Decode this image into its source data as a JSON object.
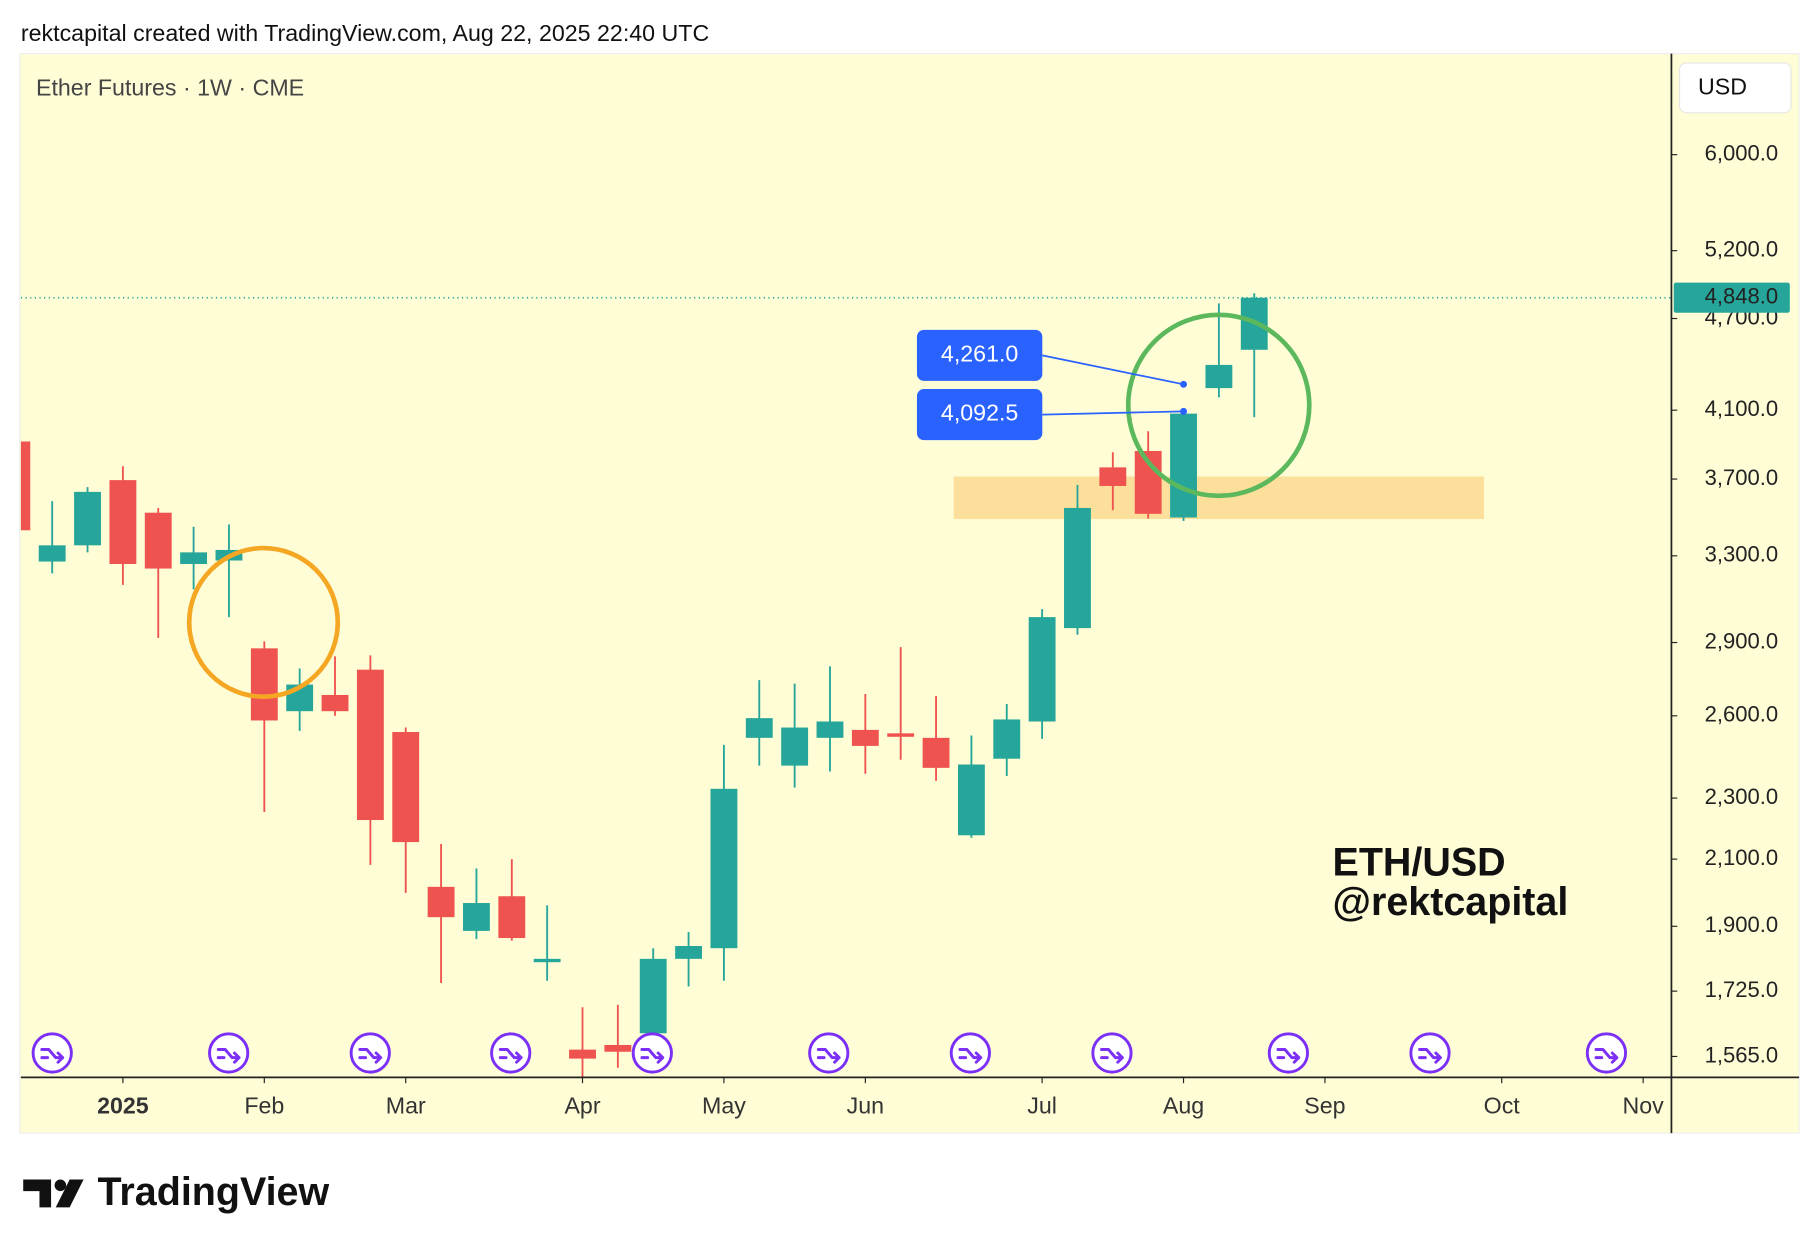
{
  "header": "rektcapital created with TradingView.com, Aug 22, 2025 22:40 UTC",
  "brand": "TradingView",
  "currency": "USD",
  "watermark": [
    "ETH/USD",
    "@rektcapital"
  ],
  "chart_data": {
    "type": "candlestick",
    "title": "Ether Futures · 1W · CME",
    "log_scale": true,
    "up_color": "#26a69a",
    "down_color": "#ef5350",
    "categories": [
      null,
      null,
      null,
      null,
      null,
      null,
      null,
      null,
      null,
      null,
      null,
      null,
      null,
      null,
      null,
      null,
      null,
      null,
      null,
      null,
      null,
      null,
      null,
      null,
      null,
      null,
      null,
      null,
      null,
      null,
      null,
      null,
      null,
      null,
      null,
      null
    ],
    "open": [
      3913,
      3272,
      3352,
      3694,
      3519,
      3260,
      3277,
      2875,
      2618,
      2682,
      2785,
      2538,
      2015,
      1887,
      1987,
      1801,
      1581,
      1592,
      1620,
      1810,
      1839,
      2516,
      2414,
      2516,
      2546,
      2533,
      2516,
      2176,
      2439,
      2578,
      2963,
      3765,
      3858,
      3494,
      4237,
      4486
    ],
    "high": [
      3913,
      3580,
      3656,
      3771,
      3544,
      3446,
      3458,
      2905,
      2790,
      2841,
      2845,
      2555,
      2148,
      2071,
      2100,
      1960,
      1684,
      1690,
      1839,
      1884,
      2490,
      2742,
      2728,
      2799,
      2686,
      2880,
      2678,
      2525,
      2646,
      3048,
      3668,
      3851,
      3973,
      4100,
      4807,
      4880
    ],
    "low": [
      3428,
      3215,
      3317,
      3160,
      2920,
      3139,
      3012,
      2253,
      2542,
      2600,
      2082,
      1997,
      1746,
      1864,
      1860,
      1752,
      1517,
      1539,
      1606,
      1737,
      1752,
      2414,
      2336,
      2393,
      2385,
      2435,
      2360,
      2168,
      2377,
      2512,
      2934,
      3532,
      3488,
      3476,
      4179,
      4058
    ],
    "close": [
      3428,
      3352,
      3630,
      3260,
      3238,
      3317,
      3329,
      2582,
      2724,
      2618,
      2226,
      2154,
      1926,
      1967,
      1867,
      1810,
      1560,
      1576,
      1810,
      1845,
      2332,
      2591,
      2555,
      2578,
      2486,
      2520,
      2406,
      2418,
      2586,
      3012,
      3544,
      3662,
      3513,
      4079,
      4386,
      4848
    ],
    "xlim": [
      0.115,
      46.8
    ],
    "xticks": [
      {
        "value": 3,
        "label": "2025"
      },
      {
        "value": 7,
        "label": "Feb"
      },
      {
        "value": 11,
        "label": "Mar"
      },
      {
        "value": 16,
        "label": "Apr"
      },
      {
        "value": 20,
        "label": "May"
      },
      {
        "value": 24,
        "label": "Jun"
      },
      {
        "value": 29,
        "label": "Jul"
      },
      {
        "value": 33,
        "label": "Aug"
      },
      {
        "value": 37,
        "label": "Sep"
      },
      {
        "value": 42,
        "label": "Oct"
      },
      {
        "value": 46,
        "label": "Nov"
      }
    ],
    "ylim": [
      1517,
      6975
    ],
    "yticks": [
      {
        "value": 1565,
        "label": "1,565.0"
      },
      {
        "value": 1725,
        "label": "1,725.0"
      },
      {
        "value": 1900,
        "label": "1,900.0"
      },
      {
        "value": 2100,
        "label": "2,100.0"
      },
      {
        "value": 2300,
        "label": "2,300.0"
      },
      {
        "value": 2600,
        "label": "2,600.0"
      },
      {
        "value": 2900,
        "label": "2,900.0"
      },
      {
        "value": 3300,
        "label": "3,300.0"
      },
      {
        "value": 3700,
        "label": "3,700.0"
      },
      {
        "value": 4100,
        "label": "4,100.0"
      },
      {
        "value": 4700,
        "label": "4,700.0"
      },
      {
        "value": 5200,
        "label": "5,200.0"
      },
      {
        "value": 6000,
        "label": "6,000.0"
      }
    ],
    "last_price": {
      "value": 4848,
      "label": "4,848.0"
    },
    "zone": [
      3486,
      3714
    ],
    "annotations": [
      {
        "value": 4261,
        "label": "4,261.0"
      },
      {
        "value": 4092.5,
        "label": "4,092.5"
      }
    ]
  }
}
